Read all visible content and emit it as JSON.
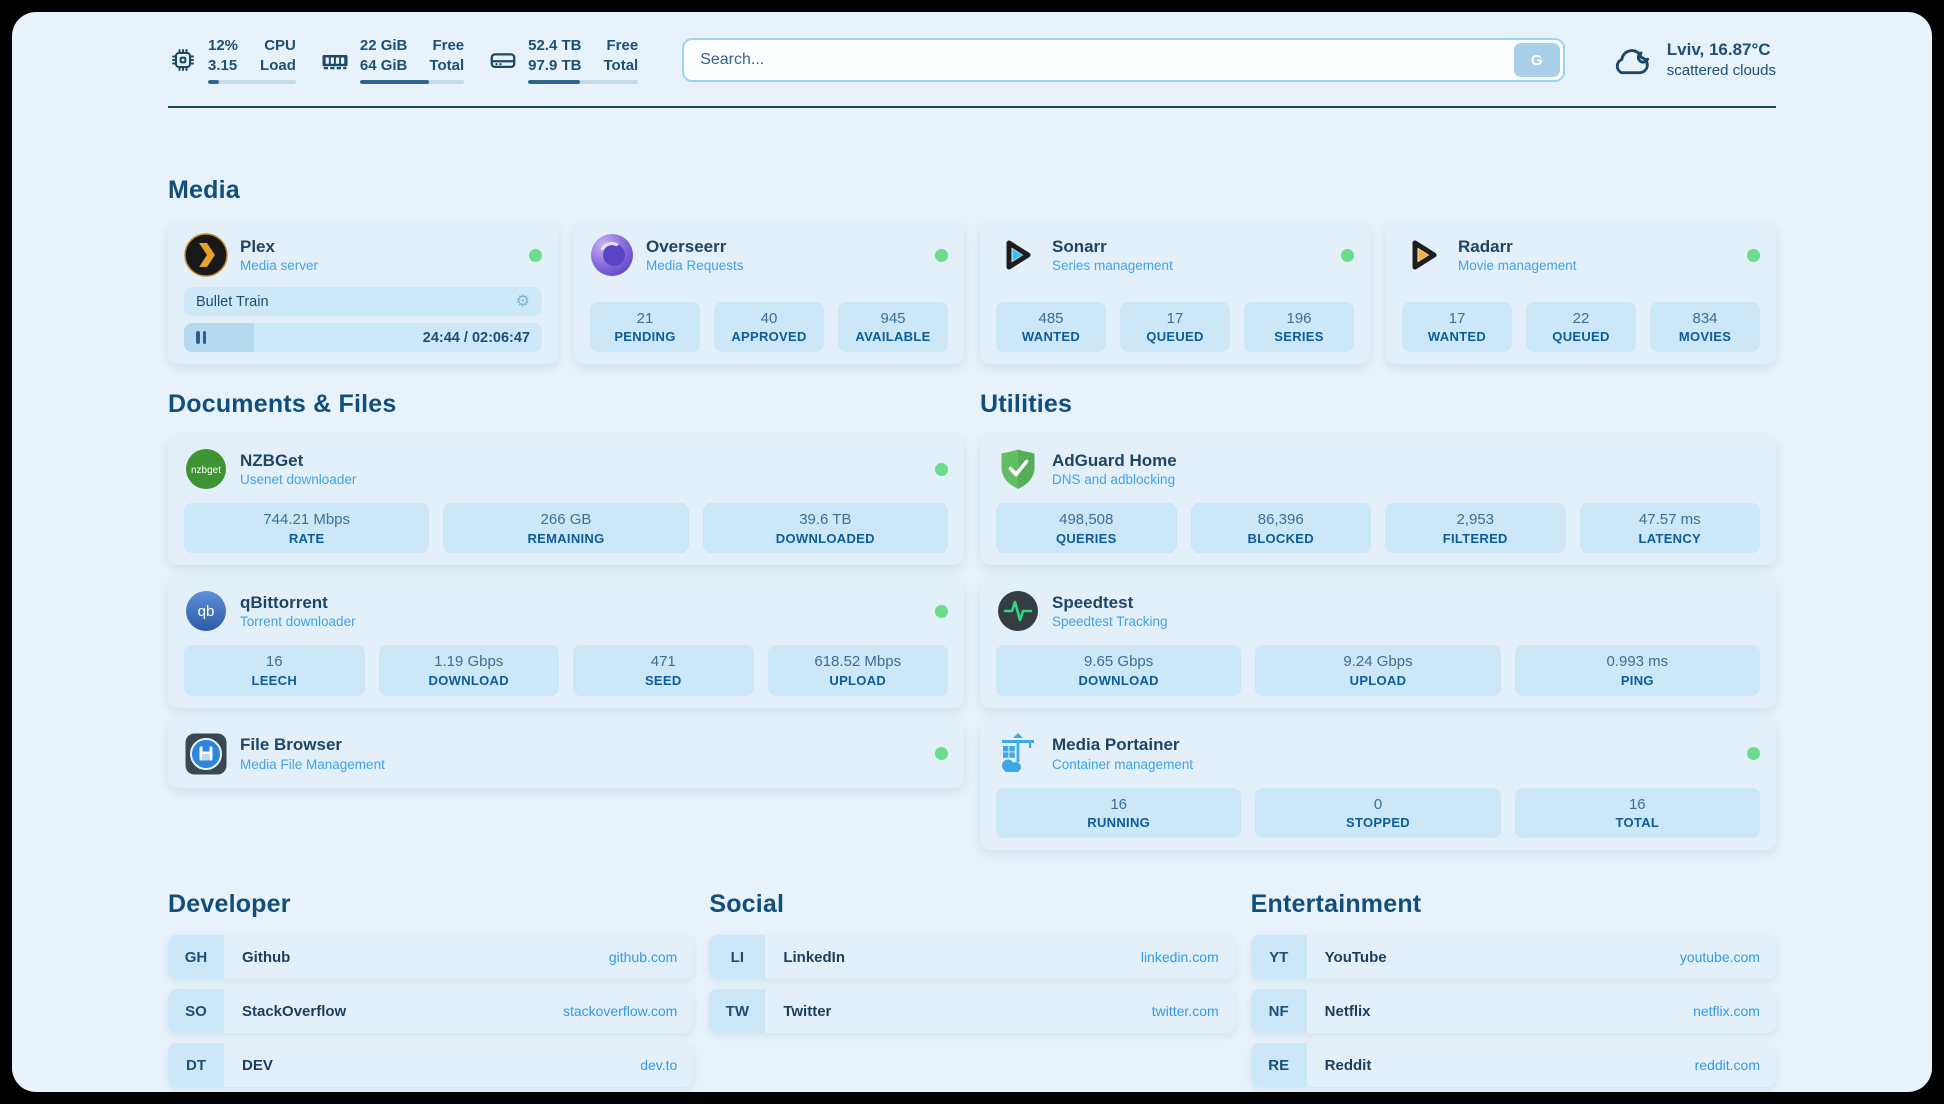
{
  "colors": {
    "online_green": "#6BDB8C",
    "accent_blue": "#3FA2EA",
    "navy": "#1B4965",
    "tile_blue": "#CBE7F8"
  },
  "header": {
    "widgets": [
      {
        "id": "cpu",
        "icon": "cpu-icon",
        "col1": [
          "12%",
          "3.15"
        ],
        "col2": [
          "CPU",
          "Load"
        ],
        "progress_pct": 12
      },
      {
        "id": "ram",
        "icon": "ram-icon",
        "col1": [
          "22 GiB",
          "64 GiB"
        ],
        "col2": [
          "Free",
          "Total"
        ],
        "progress_pct": 66
      },
      {
        "id": "disk",
        "icon": "disk-icon",
        "col1": [
          "52.4 TB",
          "97.9 TB"
        ],
        "col2": [
          "Free",
          "Total"
        ],
        "progress_pct": 47
      }
    ],
    "search": {
      "placeholder": "Search...",
      "button_label": "G"
    },
    "weather": {
      "icon": "cloud-icon",
      "headline": "Lviv, 16.87°C",
      "condition": "scattered clouds"
    }
  },
  "media_section": {
    "title": "Media",
    "cards": [
      {
        "id": "plex",
        "icon": "plex-icon",
        "title": "Plex",
        "subtitle": "Media server",
        "online": true,
        "now_playing": {
          "title": "Bullet Train",
          "time_display": "24:44 / 02:06:47",
          "progress_pct": 19.5
        },
        "stats": []
      },
      {
        "id": "overseerr",
        "icon": "overseerr-icon",
        "title": "Overseerr",
        "subtitle": "Media Requests",
        "online": true,
        "stats": [
          {
            "value": "21",
            "label": "PENDING"
          },
          {
            "value": "40",
            "label": "APPROVED"
          },
          {
            "value": "945",
            "label": "AVAILABLE"
          }
        ]
      },
      {
        "id": "sonarr",
        "icon": "sonarr-icon",
        "title": "Sonarr",
        "subtitle": "Series management",
        "online": true,
        "stats": [
          {
            "value": "485",
            "label": "WANTED"
          },
          {
            "value": "17",
            "label": "QUEUED"
          },
          {
            "value": "196",
            "label": "SERIES"
          }
        ]
      },
      {
        "id": "radarr",
        "icon": "radarr-icon",
        "title": "Radarr",
        "subtitle": "Movie management",
        "online": true,
        "stats": [
          {
            "value": "17",
            "label": "WANTED"
          },
          {
            "value": "22",
            "label": "QUEUED"
          },
          {
            "value": "834",
            "label": "MOVIES"
          }
        ]
      }
    ]
  },
  "columns": [
    {
      "title": "Documents & Files",
      "cards": [
        {
          "id": "nzbget",
          "icon": "nzbget-icon",
          "title": "NZBGet",
          "subtitle": "Usenet downloader",
          "online": true,
          "stats": [
            {
              "value": "744.21 Mbps",
              "label": "RATE"
            },
            {
              "value": "266 GB",
              "label": "REMAINING"
            },
            {
              "value": "39.6 TB",
              "label": "DOWNLOADED"
            }
          ]
        },
        {
          "id": "qbittorrent",
          "icon": "qbittorrent-icon",
          "title": "qBittorrent",
          "subtitle": "Torrent downloader",
          "online": true,
          "stats": [
            {
              "value": "16",
              "label": "LEECH"
            },
            {
              "value": "1.19 Gbps",
              "label": "DOWNLOAD"
            },
            {
              "value": "471",
              "label": "SEED"
            },
            {
              "value": "618.52 Mbps",
              "label": "UPLOAD"
            }
          ]
        },
        {
          "id": "filebrowser",
          "icon": "filebrowser-icon",
          "title": "File Browser",
          "subtitle": "Media File Management",
          "online": true,
          "stats": []
        }
      ]
    },
    {
      "title": "Utilities",
      "cards": [
        {
          "id": "adguard",
          "icon": "adguard-icon",
          "title": "AdGuard Home",
          "subtitle": "DNS and adblocking",
          "online": false,
          "stats": [
            {
              "value": "498,508",
              "label": "QUERIES"
            },
            {
              "value": "86,396",
              "label": "BLOCKED"
            },
            {
              "value": "2,953",
              "label": "FILTERED"
            },
            {
              "value": "47.57 ms",
              "label": "LATENCY"
            }
          ]
        },
        {
          "id": "speedtest",
          "icon": "speedtest-icon",
          "title": "Speedtest",
          "subtitle": "Speedtest Tracking",
          "online": false,
          "stats": [
            {
              "value": "9.65 Gbps",
              "label": "DOWNLOAD"
            },
            {
              "value": "9.24 Gbps",
              "label": "UPLOAD"
            },
            {
              "value": "0.993 ms",
              "label": "PING"
            }
          ]
        },
        {
          "id": "portainer",
          "icon": "portainer-icon",
          "title": "Media Portainer",
          "subtitle": "Container management",
          "online": true,
          "stats": [
            {
              "value": "16",
              "label": "RUNNING"
            },
            {
              "value": "0",
              "label": "STOPPED"
            },
            {
              "value": "16",
              "label": "TOTAL"
            }
          ]
        }
      ]
    }
  ],
  "bookmark_sections": [
    {
      "title": "Developer",
      "items": [
        {
          "abbr": "GH",
          "name": "Github",
          "url": "github.com"
        },
        {
          "abbr": "SO",
          "name": "StackOverflow",
          "url": "stackoverflow.com"
        },
        {
          "abbr": "DT",
          "name": "DEV",
          "url": "dev.to"
        }
      ]
    },
    {
      "title": "Social",
      "items": [
        {
          "abbr": "LI",
          "name": "LinkedIn",
          "url": "linkedin.com"
        },
        {
          "abbr": "TW",
          "name": "Twitter",
          "url": "twitter.com"
        }
      ]
    },
    {
      "title": "Entertainment",
      "items": [
        {
          "abbr": "YT",
          "name": "YouTube",
          "url": "youtube.com"
        },
        {
          "abbr": "NF",
          "name": "Netflix",
          "url": "netflix.com"
        },
        {
          "abbr": "RE",
          "name": "Reddit",
          "url": "reddit.com"
        }
      ]
    }
  ]
}
